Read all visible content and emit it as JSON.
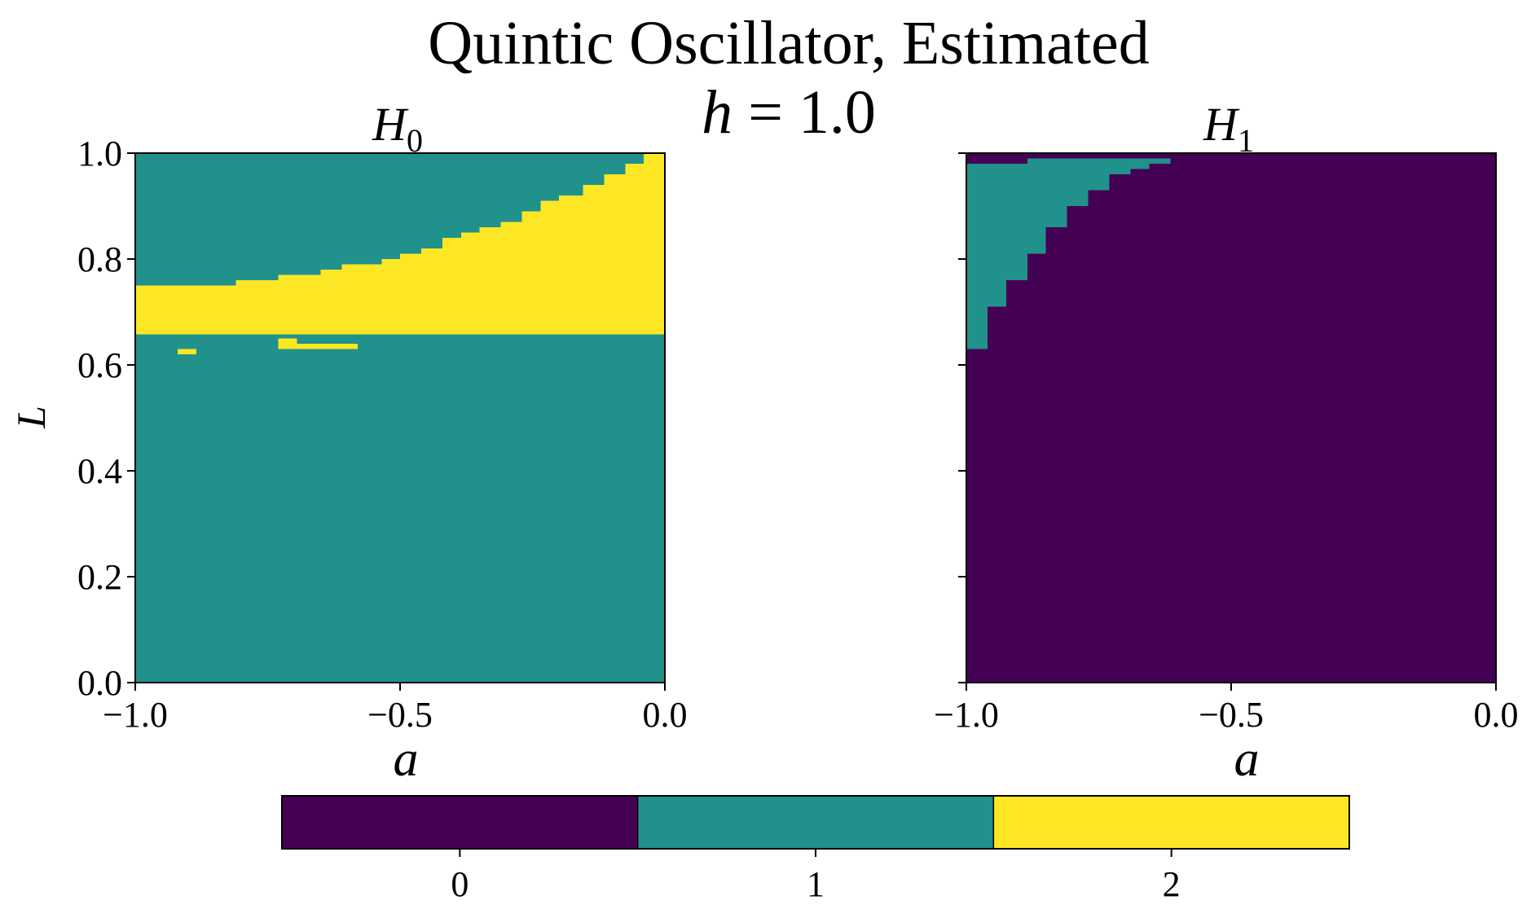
{
  "figure": {
    "title_line1": "Quintic Oscillator, Estimated",
    "title_line2_var": "h",
    "title_line2_rest": " = 1.0"
  },
  "chart_data": [
    {
      "type": "heatmap",
      "panel": "left",
      "title_base": "H",
      "title_sub": "0",
      "xlabel": "a",
      "ylabel": "L",
      "xlim": [
        -1.0,
        0.0
      ],
      "ylim": [
        0.0,
        1.0
      ],
      "xticks": [
        -1.0,
        -0.5,
        0.0
      ],
      "xtick_labels": [
        "−1.0",
        "−0.5",
        "0.0"
      ],
      "yticks": [
        0.0,
        0.2,
        0.4,
        0.6,
        0.8,
        1.0
      ],
      "ytick_labels": [
        "0.0",
        "0.2",
        "0.4",
        "0.6",
        "0.8",
        "1.0"
      ],
      "background_value": 1,
      "regions": [
        {
          "value": 2,
          "x0": -1.0,
          "x1": 0.0,
          "y0": 0.658,
          "y1": 0.748
        },
        {
          "value": 2,
          "x0": -1.0,
          "x1": -0.81,
          "y0": 0.74,
          "y1": 0.75
        },
        {
          "value": 2,
          "x0": -0.81,
          "x1": -0.73,
          "y0": 0.74,
          "y1": 0.76
        },
        {
          "value": 2,
          "x0": -0.73,
          "x1": -0.65,
          "y0": 0.74,
          "y1": 0.77
        },
        {
          "value": 2,
          "x0": -0.65,
          "x1": -0.61,
          "y0": 0.74,
          "y1": 0.78
        },
        {
          "value": 2,
          "x0": -0.61,
          "x1": -0.535,
          "y0": 0.74,
          "y1": 0.79
        },
        {
          "value": 2,
          "x0": -0.535,
          "x1": -0.5,
          "y0": 0.74,
          "y1": 0.8
        },
        {
          "value": 2,
          "x0": -0.5,
          "x1": -0.46,
          "y0": 0.74,
          "y1": 0.81
        },
        {
          "value": 2,
          "x0": -0.46,
          "x1": -0.42,
          "y0": 0.74,
          "y1": 0.82
        },
        {
          "value": 2,
          "x0": -0.42,
          "x1": -0.385,
          "y0": 0.74,
          "y1": 0.84
        },
        {
          "value": 2,
          "x0": -0.385,
          "x1": -0.35,
          "y0": 0.74,
          "y1": 0.85
        },
        {
          "value": 2,
          "x0": -0.35,
          "x1": -0.31,
          "y0": 0.74,
          "y1": 0.86
        },
        {
          "value": 2,
          "x0": -0.31,
          "x1": -0.27,
          "y0": 0.74,
          "y1": 0.87
        },
        {
          "value": 2,
          "x0": -0.27,
          "x1": -0.235,
          "y0": 0.74,
          "y1": 0.89
        },
        {
          "value": 2,
          "x0": -0.235,
          "x1": -0.2,
          "y0": 0.74,
          "y1": 0.91
        },
        {
          "value": 2,
          "x0": -0.2,
          "x1": -0.155,
          "y0": 0.74,
          "y1": 0.92
        },
        {
          "value": 2,
          "x0": -0.155,
          "x1": -0.115,
          "y0": 0.74,
          "y1": 0.94
        },
        {
          "value": 2,
          "x0": -0.115,
          "x1": -0.075,
          "y0": 0.74,
          "y1": 0.96
        },
        {
          "value": 2,
          "x0": -0.075,
          "x1": -0.04,
          "y0": 0.74,
          "y1": 0.98
        },
        {
          "value": 2,
          "x0": -0.04,
          "x1": 0.0,
          "y0": 0.74,
          "y1": 1.0
        },
        {
          "value": 2,
          "x0": -0.92,
          "x1": -0.885,
          "y0": 0.62,
          "y1": 0.63
        },
        {
          "value": 2,
          "x0": -0.73,
          "x1": -0.695,
          "y0": 0.63,
          "y1": 0.65
        },
        {
          "value": 2,
          "x0": -0.695,
          "x1": -0.58,
          "y0": 0.63,
          "y1": 0.64
        }
      ]
    },
    {
      "type": "heatmap",
      "panel": "right",
      "title_base": "H",
      "title_sub": "1",
      "xlabel": "a",
      "xlim": [
        -1.0,
        0.0
      ],
      "ylim": [
        0.0,
        1.0
      ],
      "xticks": [
        -1.0,
        -0.5,
        0.0
      ],
      "xtick_labels": [
        "−1.0",
        "−0.5",
        "0.0"
      ],
      "yticks": [
        0.0,
        0.2,
        0.4,
        0.6,
        0.8,
        1.0
      ],
      "background_value": 0,
      "regions": [
        {
          "value": 1,
          "x0": -1.0,
          "x1": -0.96,
          "y0": 0.63,
          "y1": 0.98
        },
        {
          "value": 1,
          "x0": -0.96,
          "x1": -0.925,
          "y0": 0.71,
          "y1": 0.98
        },
        {
          "value": 1,
          "x0": -0.925,
          "x1": -0.885,
          "y0": 0.76,
          "y1": 0.98
        },
        {
          "value": 1,
          "x0": -0.885,
          "x1": -0.85,
          "y0": 0.81,
          "y1": 0.98
        },
        {
          "value": 1,
          "x0": -0.85,
          "x1": -0.81,
          "y0": 0.86,
          "y1": 0.98
        },
        {
          "value": 1,
          "x0": -0.81,
          "x1": -0.77,
          "y0": 0.9,
          "y1": 0.98
        },
        {
          "value": 1,
          "x0": -0.77,
          "x1": -0.73,
          "y0": 0.93,
          "y1": 0.98
        },
        {
          "value": 1,
          "x0": -0.73,
          "x1": -0.69,
          "y0": 0.96,
          "y1": 0.98
        },
        {
          "value": 1,
          "x0": -0.69,
          "x1": -0.655,
          "y0": 0.97,
          "y1": 0.98
        },
        {
          "value": 1,
          "x0": -0.655,
          "x1": -0.615,
          "y0": 0.98,
          "y1": 0.99
        },
        {
          "value": 1,
          "x0": -0.885,
          "x1": -0.615,
          "y0": 0.98,
          "y1": 0.99
        }
      ]
    }
  ],
  "colorbar": {
    "type": "discrete",
    "values": [
      0,
      1,
      2
    ],
    "tick_labels": [
      "0",
      "1",
      "2"
    ],
    "colors": [
      "#440154",
      "#21918c",
      "#fde725"
    ]
  }
}
